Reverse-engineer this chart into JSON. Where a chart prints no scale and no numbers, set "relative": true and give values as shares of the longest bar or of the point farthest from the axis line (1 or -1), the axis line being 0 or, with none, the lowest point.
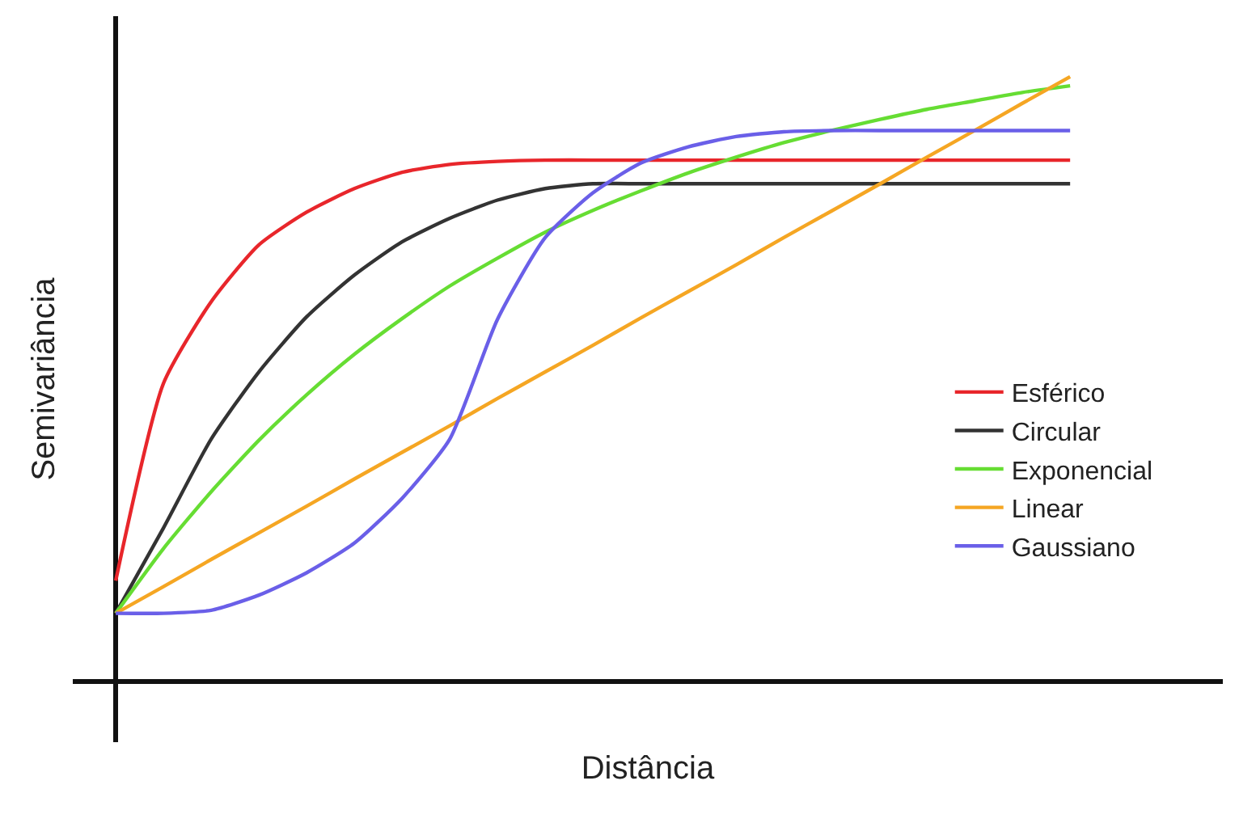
{
  "chart_data": {
    "type": "line",
    "relative": true,
    "xlabel": "Distância",
    "ylabel": "Semivariância",
    "legend": "right",
    "categories": [
      null,
      null,
      null,
      null,
      null,
      null,
      null,
      null,
      null,
      null,
      null,
      null,
      null,
      null,
      null,
      null,
      null,
      null,
      null,
      null,
      null
    ],
    "series": [
      {
        "name": "Esférico",
        "color": "#e8262b",
        "values": [
          0.167,
          0.493,
          0.628,
          0.722,
          0.776,
          0.815,
          0.842,
          0.855,
          0.86,
          0.862,
          0.862,
          0.862,
          0.862,
          0.862,
          0.862,
          0.862,
          0.862,
          0.862,
          0.862,
          0.862,
          0.862
        ]
      },
      {
        "name": "Circular",
        "color": "#333333",
        "values": [
          0.113,
          0.254,
          0.401,
          0.512,
          0.603,
          0.672,
          0.727,
          0.766,
          0.796,
          0.815,
          0.823,
          0.823,
          0.823,
          0.823,
          0.823,
          0.823,
          0.823,
          0.823,
          0.823,
          0.823,
          0.823
        ]
      },
      {
        "name": "Exponencial",
        "color": "#66dd33",
        "values": [
          0.113,
          0.22,
          0.314,
          0.399,
          0.474,
          0.541,
          0.6,
          0.654,
          0.7,
          0.743,
          0.779,
          0.811,
          0.841,
          0.867,
          0.891,
          0.911,
          0.929,
          0.946,
          0.96,
          0.974,
          0.985
        ]
      },
      {
        "name": "Linear",
        "color": "#f5a623",
        "values": [
          0.113,
          0.157,
          0.202,
          0.246,
          0.29,
          0.335,
          0.379,
          0.423,
          0.468,
          0.512,
          0.556,
          0.601,
          0.645,
          0.689,
          0.734,
          0.778,
          0.822,
          0.867,
          0.911,
          0.956,
          1.0
        ]
      },
      {
        "name": "Gaussiano",
        "color": "#6a5fe8",
        "values": [
          0.113,
          0.113,
          0.118,
          0.143,
          0.18,
          0.229,
          0.303,
          0.401,
          0.599,
          0.734,
          0.808,
          0.857,
          0.884,
          0.901,
          0.909,
          0.911,
          0.911,
          0.911,
          0.911,
          0.911,
          0.911
        ]
      }
    ]
  }
}
